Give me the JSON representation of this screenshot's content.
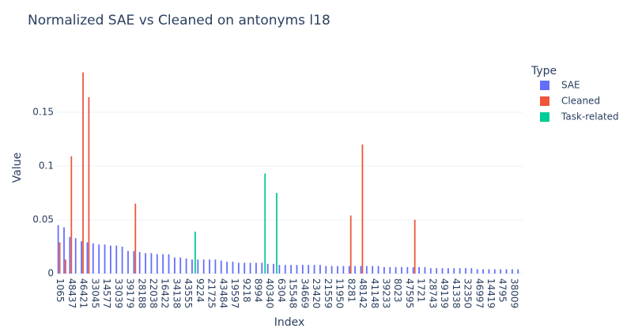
{
  "chart_data": {
    "type": "bar",
    "title": "Normalized SAE vs Cleaned on antonyms l18",
    "x_label": "Index",
    "y_label": "Value",
    "legend_title": "Type",
    "legend_position": "right",
    "categories": [
      "1065",
      null,
      "48437",
      null,
      "46421",
      null,
      "33045",
      null,
      "14577",
      null,
      "33039",
      null,
      "39179",
      null,
      "28188",
      null,
      "22038",
      null,
      "16422",
      null,
      "34138",
      null,
      "43555",
      null,
      "9224",
      null,
      "21725",
      null,
      "43484",
      null,
      "19597",
      null,
      "9218",
      null,
      "8994",
      null,
      "40340",
      null,
      "6304",
      null,
      "15548",
      null,
      "34669",
      null,
      "23420",
      null,
      "21559",
      null,
      "11950",
      null,
      "8281",
      null,
      "48142",
      null,
      "41148",
      null,
      "39233",
      null,
      "8023",
      null,
      "47595",
      null,
      "1721",
      null,
      "28743",
      null,
      "49139",
      null,
      "41338",
      null,
      "32350",
      null,
      "46997",
      null,
      "14419",
      null,
      "4795",
      null,
      "38009",
      null
    ],
    "series": [
      {
        "name": "SAE",
        "color": "#636efa",
        "values": [
          0.045,
          0.043,
          0.034,
          0.033,
          0.03,
          0.029,
          0.028,
          0.027,
          0.027,
          0.026,
          0.026,
          0.025,
          0.021,
          0.021,
          0.02,
          0.019,
          0.019,
          0.018,
          0.018,
          0.018,
          0.015,
          0.015,
          0.014,
          0.013,
          0.013,
          0.013,
          0.013,
          0.013,
          0.012,
          0.011,
          0.011,
          0.01,
          0.01,
          0.01,
          0.01,
          0.01,
          0.009,
          0.009,
          0.008,
          0.008,
          0.008,
          0.008,
          0.008,
          0.008,
          0.008,
          0.008,
          0.007,
          0.007,
          0.007,
          0.007,
          0.007,
          0.007,
          0.007,
          0.007,
          0.007,
          0.007,
          0.006,
          0.006,
          0.006,
          0.006,
          0.006,
          0.006,
          0.006,
          0.006,
          0.005,
          0.005,
          0.005,
          0.005,
          0.005,
          0.005,
          0.005,
          0.005,
          0.004,
          0.004,
          0.004,
          0.004,
          0.004,
          0.004,
          0.004,
          0.004
        ]
      },
      {
        "name": "Cleaned",
        "color": "#ef553b",
        "values": [
          0.029,
          0.013,
          0.109,
          null,
          0.187,
          0.164,
          null,
          null,
          null,
          null,
          null,
          null,
          null,
          0.065,
          null,
          null,
          null,
          null,
          null,
          null,
          null,
          null,
          null,
          null,
          null,
          null,
          null,
          null,
          null,
          null,
          null,
          null,
          null,
          null,
          null,
          null,
          null,
          null,
          null,
          null,
          null,
          null,
          null,
          null,
          null,
          null,
          null,
          null,
          null,
          null,
          0.054,
          null,
          0.12,
          null,
          null,
          null,
          null,
          null,
          null,
          null,
          null,
          0.05,
          null,
          null,
          null,
          null,
          null,
          null,
          null,
          null,
          null,
          null,
          null,
          null,
          null,
          null,
          null,
          null,
          null,
          null
        ]
      },
      {
        "name": "Task-related",
        "color": "#00cc96",
        "values": [
          null,
          null,
          null,
          null,
          null,
          null,
          null,
          null,
          null,
          null,
          null,
          null,
          null,
          null,
          null,
          null,
          null,
          null,
          null,
          null,
          null,
          null,
          null,
          0.039,
          null,
          null,
          null,
          null,
          null,
          null,
          null,
          null,
          null,
          null,
          null,
          0.093,
          null,
          0.075,
          null,
          null,
          null,
          null,
          null,
          null,
          null,
          null,
          null,
          null,
          null,
          null,
          null,
          null,
          null,
          null,
          null,
          null,
          null,
          null,
          null,
          null,
          null,
          null,
          null,
          null,
          null,
          null,
          null,
          null,
          null,
          null,
          null,
          null,
          null,
          null,
          null,
          null,
          null,
          null,
          null,
          null
        ]
      }
    ],
    "ylim": [
      0,
      0.197
    ],
    "yticks": [
      0,
      0.05,
      0.1,
      0.15
    ],
    "grid": true
  }
}
